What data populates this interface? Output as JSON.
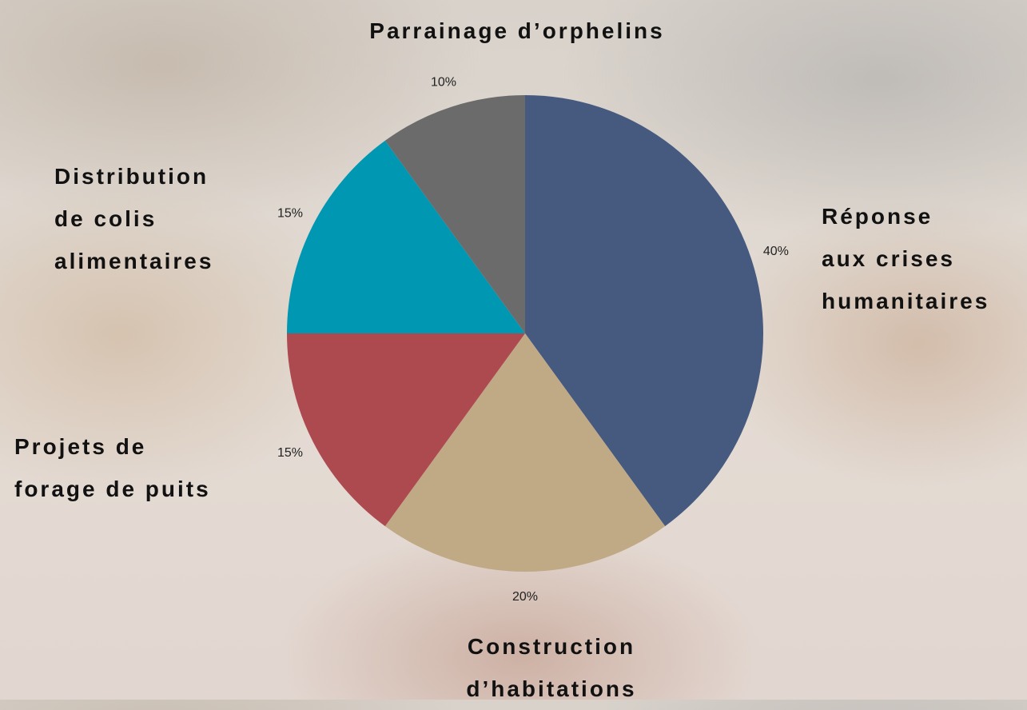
{
  "chart_data": {
    "type": "pie",
    "categories": [
      "Réponse\naux crises\nhumanitaires",
      "Construction\nd’habitations",
      "Projets de\nforage de puits",
      "Distribution\nde colis\nalimentaires",
      "Parrainage d’orphelins"
    ],
    "values": [
      40,
      20,
      15,
      15,
      10
    ],
    "value_labels": [
      "40%",
      "20%",
      "15%",
      "15%",
      "10%"
    ],
    "colors": [
      "#465a80",
      "#c0aa86",
      "#ad4a4f",
      "#0097b2",
      "#6b6b6b"
    ]
  }
}
